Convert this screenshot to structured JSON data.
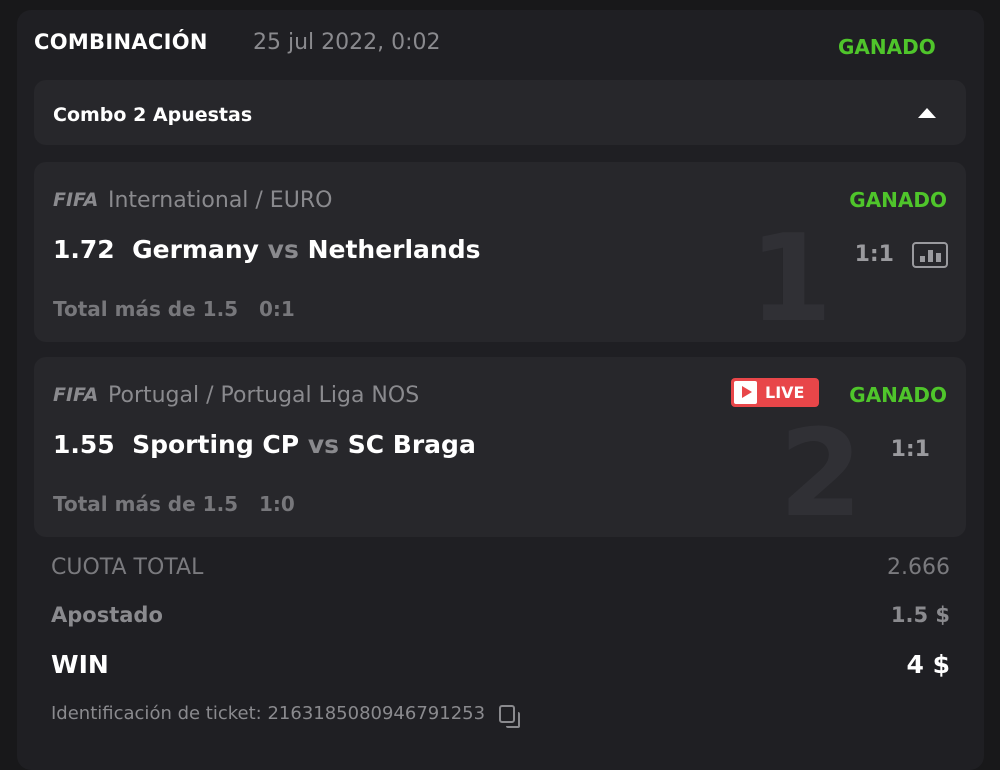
{
  "header": {
    "title": "COMBINACIÓN",
    "date": "25 jul 2022, 0:02",
    "status": "GANADO"
  },
  "combo": {
    "label": "Combo 2 Apuestas"
  },
  "colors": {
    "win": "#4fc52b",
    "live": "#e84649"
  },
  "bets": [
    {
      "index": "1",
      "logo": "FIFA",
      "league": "International / EURO",
      "odds": "1.72",
      "home": "Germany",
      "vs": "vs",
      "away": "Netherlands",
      "status": "GANADO",
      "score": "1:1",
      "market": "Total más de 1.5",
      "market_score": "0:1",
      "live": false
    },
    {
      "index": "2",
      "logo": "FIFA",
      "league": "Portugal / Portugal Liga NOS",
      "odds": "1.55",
      "home": "Sporting CP",
      "vs": "vs",
      "away": "SC Braga",
      "status": "GANADO",
      "score": "1:1",
      "market": "Total más de 1.5",
      "market_score": "1:0",
      "live": true,
      "live_label": "LIVE"
    }
  ],
  "summary": {
    "total_odds_label": "CUOTA TOTAL",
    "total_odds": "2.666",
    "staked_label": "Apostado",
    "staked": "1.5 $",
    "win_label": "WIN",
    "win": "4 $"
  },
  "ticket": {
    "label": "Identificación de ticket: 2163185080946791253"
  }
}
